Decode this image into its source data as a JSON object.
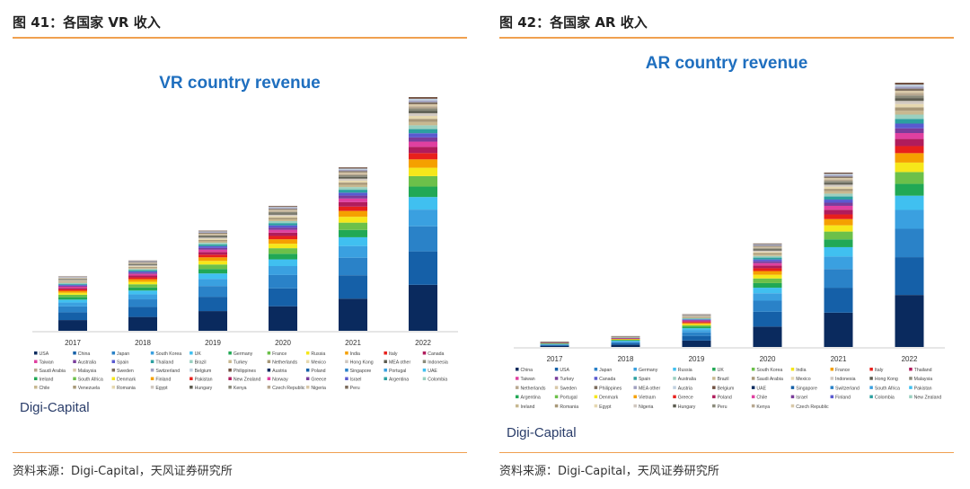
{
  "panels": [
    {
      "fig_title": "图 41：各国家 VR 收入",
      "source": "资料来源：Digi-Capital，天风证券研究所",
      "brand": "Digi-Capital",
      "chart_data": {
        "type": "bar",
        "stacked": true,
        "title": "VR country revenue",
        "categories": [
          "2017",
          "2018",
          "2019",
          "2020",
          "2021",
          "2022"
        ],
        "totals": [
          0.31,
          0.4,
          0.57,
          0.71,
          0.93,
          1.33
        ],
        "legend": [
          "USA",
          "China",
          "Japan",
          "South Korea",
          "UK",
          "Germany",
          "France",
          "Russia",
          "India",
          "Italy",
          "Canada",
          "Taiwan",
          "Australia",
          "Spain",
          "Thailand",
          "Brazil",
          "Turkey",
          "Netherlands",
          "Mexico",
          "Hong Kong",
          "MEA other",
          "Indonesia",
          "Saudi Arabia",
          "Malaysia",
          "Sweden",
          "Switzerland",
          "Belgium",
          "Philippines",
          "Austria",
          "Poland",
          "Singapore",
          "Portugal",
          "UAE",
          "Ireland",
          "South Africa",
          "Denmark",
          "Finland",
          "Pakistan",
          "New Zealand",
          "Norway",
          "Greece",
          "Israel",
          "Argentina",
          "Colombia",
          "Chile",
          "Venezuela",
          "Romania",
          "Egypt",
          "Hungary",
          "Kenya",
          "Czech Republic",
          "Nigeria",
          "Peru"
        ],
        "legend_position": "bottom",
        "grid": false
      }
    },
    {
      "fig_title": "图 42：各国家 AR 收入",
      "source": "资料来源：Digi-Capital，天风证券研究所",
      "brand": "Digi-Capital",
      "chart_data": {
        "type": "bar",
        "stacked": true,
        "title": "AR country revenue",
        "categories": [
          "2017",
          "2018",
          "2019",
          "2020",
          "2021",
          "2022"
        ],
        "totals": [
          0.02,
          0.04,
          0.12,
          0.38,
          0.64,
          0.97
        ],
        "legend": [
          "China",
          "USA",
          "Japan",
          "Germany",
          "Russia",
          "UK",
          "South Korea",
          "India",
          "France",
          "Italy",
          "Thailand",
          "Taiwan",
          "Turkey",
          "Canada",
          "Spain",
          "Australia",
          "Brazil",
          "Saudi Arabia",
          "Mexico",
          "Indonesia",
          "Hong Kong",
          "Malaysia",
          "Netherlands",
          "Sweden",
          "Philippines",
          "MEA other",
          "Austria",
          "Belgium",
          "UAE",
          "Singapore",
          "Switzerland",
          "South Africa",
          "Pakistan",
          "Argentina",
          "Portugal",
          "Denmark",
          "Vietnam",
          "Greece",
          "Poland",
          "Chile",
          "Israel",
          "Finland",
          "Colombia",
          "New Zealand",
          "Ireland",
          "Romania",
          "Egypt",
          "Nigeria",
          "Hungary",
          "Peru",
          "Kenya",
          "Czech Republic"
        ],
        "legend_position": "bottom",
        "grid": false
      }
    }
  ],
  "palette": [
    "#0a2a5e",
    "#1560a8",
    "#2a82c8",
    "#3aa0e0",
    "#40c0f0",
    "#21a855",
    "#6cc04a",
    "#f6e71a",
    "#f5a000",
    "#e8201c",
    "#b01c5c",
    "#e040a0",
    "#7a3c9a",
    "#5a5ad0",
    "#2ca0a0",
    "#9ad0c0",
    "#c8b890",
    "#a89878",
    "#e6d8b0",
    "#d0c8c0",
    "#5c5c50",
    "#8a8a7a",
    "#b8a890",
    "#d8c8a8",
    "#7c6c5c",
    "#a0a0c0",
    "#c0d0e0",
    "#705040"
  ]
}
